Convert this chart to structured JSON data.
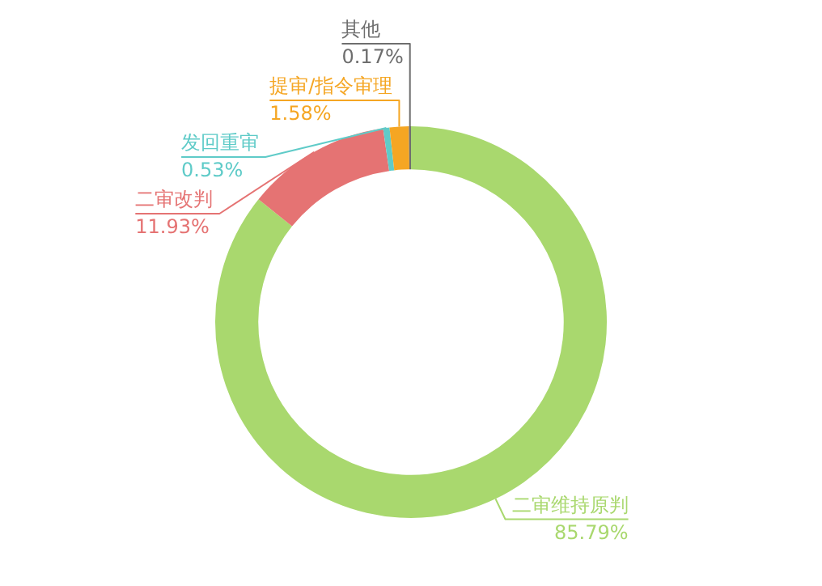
{
  "chart_data": {
    "type": "donut",
    "categories": [
      "二审维持原判",
      "二审改判",
      "发回重审",
      "提审/指令审理",
      "其他"
    ],
    "values": [
      85.79,
      11.93,
      0.53,
      1.58,
      0.17
    ],
    "value_labels": [
      "85.79%",
      "11.93%",
      "0.53%",
      "1.58%",
      "0.17%"
    ],
    "colors": [
      "#a9d86e",
      "#e57373",
      "#5fcbc8",
      "#f5a623",
      "#6e6e6e"
    ],
    "legend": false
  }
}
